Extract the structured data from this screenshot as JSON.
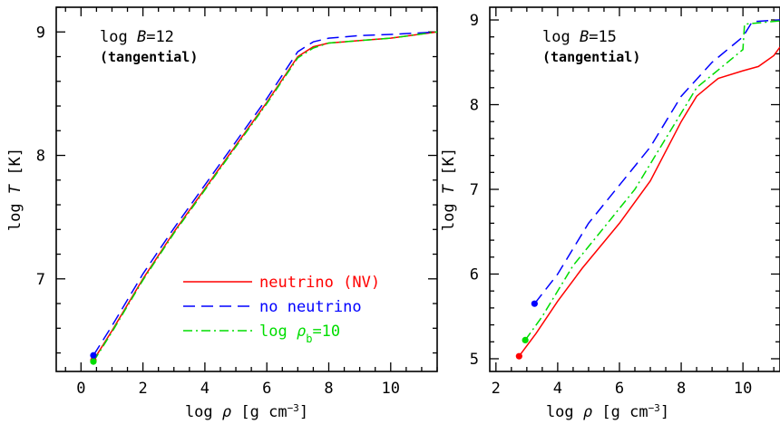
{
  "colors": {
    "neutrino": "#ff0000",
    "no_neutrino": "#0000ff",
    "log_rho_b": "#00dd00",
    "axes": "#000000"
  },
  "chart_data": [
    {
      "type": "line",
      "panel": "left",
      "annotation_main": "log B = 12",
      "annotation_sub": "(tangential)",
      "xlabel": "log ρ [g cm⁻³]",
      "ylabel": "log T [K]",
      "xlim": [
        -0.8,
        11.5
      ],
      "ylim": [
        6.25,
        9.2
      ],
      "xticks": [
        0,
        2,
        4,
        6,
        8,
        10
      ],
      "yticks": [
        7,
        8,
        9
      ],
      "legend": {
        "placement": "bottom-right",
        "entries": [
          {
            "label": "neutrino (NV)",
            "series": "neutrino"
          },
          {
            "label": "no neutrino",
            "series": "no_neutrino"
          },
          {
            "label": "log ρb=10",
            "series": "log_rho_b"
          }
        ]
      },
      "series": [
        {
          "key": "neutrino",
          "color": "#ff0000",
          "dash": "solid",
          "start_marker": [
            0.4,
            6.34
          ],
          "x": [
            0.4,
            1.0,
            2.0,
            3.0,
            4.0,
            5.0,
            6.0,
            7.0,
            7.5,
            8.0,
            9.0,
            10.0,
            11.5
          ],
          "y": [
            6.34,
            6.58,
            7.0,
            7.38,
            7.73,
            8.08,
            8.43,
            8.8,
            8.88,
            8.91,
            8.93,
            8.95,
            9.0
          ]
        },
        {
          "key": "no_neutrino",
          "color": "#0000ff",
          "dash": "dashed",
          "start_marker": [
            0.4,
            6.38
          ],
          "x": [
            0.4,
            1.0,
            2.0,
            3.0,
            4.0,
            5.0,
            6.0,
            7.0,
            7.5,
            8.0,
            9.0,
            10.0,
            11.5
          ],
          "y": [
            6.38,
            6.62,
            7.04,
            7.41,
            7.76,
            8.11,
            8.46,
            8.84,
            8.92,
            8.95,
            8.97,
            8.98,
            9.0
          ]
        },
        {
          "key": "log_rho_b",
          "color": "#00dd00",
          "dash": "dashdot",
          "start_marker": [
            0.4,
            6.33
          ],
          "x": [
            0.4,
            1.0,
            2.0,
            3.0,
            4.0,
            5.0,
            6.0,
            7.0,
            7.5,
            8.0,
            9.0,
            10.0,
            11.5
          ],
          "y": [
            6.33,
            6.57,
            6.99,
            7.37,
            7.72,
            8.07,
            8.42,
            8.79,
            8.87,
            8.91,
            8.93,
            8.95,
            9.0
          ]
        }
      ]
    },
    {
      "type": "line",
      "panel": "right",
      "annotation_main": "log B = 15",
      "annotation_sub": "(tangential)",
      "xlabel": "log ρ [g cm⁻³]",
      "ylabel": "log T [K]",
      "xlim": [
        1.8,
        11.2
      ],
      "ylim": [
        4.85,
        9.15
      ],
      "xticks": [
        2,
        4,
        6,
        8,
        10
      ],
      "yticks": [
        5,
        6,
        7,
        8,
        9
      ],
      "series": [
        {
          "key": "neutrino",
          "color": "#ff0000",
          "dash": "solid",
          "start_marker": [
            2.75,
            5.03
          ],
          "x": [
            2.75,
            3.3,
            4.0,
            4.8,
            6.0,
            7.0,
            8.0,
            8.5,
            9.0,
            9.2,
            10.0,
            10.5,
            11.0,
            11.2
          ],
          "y": [
            5.03,
            5.3,
            5.68,
            6.07,
            6.6,
            7.1,
            7.8,
            8.1,
            8.25,
            8.31,
            8.4,
            8.45,
            8.58,
            8.68
          ]
        },
        {
          "key": "no_neutrino",
          "color": "#0000ff",
          "dash": "dashed",
          "start_marker": [
            3.25,
            5.65
          ],
          "x": [
            3.25,
            4.0,
            5.0,
            6.0,
            7.0,
            8.0,
            9.0,
            10.0,
            10.3,
            11.2
          ],
          "y": [
            5.65,
            6.0,
            6.6,
            7.05,
            7.5,
            8.1,
            8.5,
            8.8,
            8.98,
            9.0
          ]
        },
        {
          "key": "log_rho_b",
          "color": "#00dd00",
          "dash": "dashdot",
          "start_marker": [
            2.95,
            5.22
          ],
          "x": [
            2.95,
            3.5,
            4.5,
            5.5,
            6.5,
            7.5,
            8.5,
            9.0,
            9.5,
            10.0,
            10.05,
            11.2
          ],
          "y": [
            5.22,
            5.5,
            6.1,
            6.55,
            7.0,
            7.6,
            8.2,
            8.35,
            8.5,
            8.65,
            8.95,
            8.99
          ]
        }
      ]
    }
  ]
}
